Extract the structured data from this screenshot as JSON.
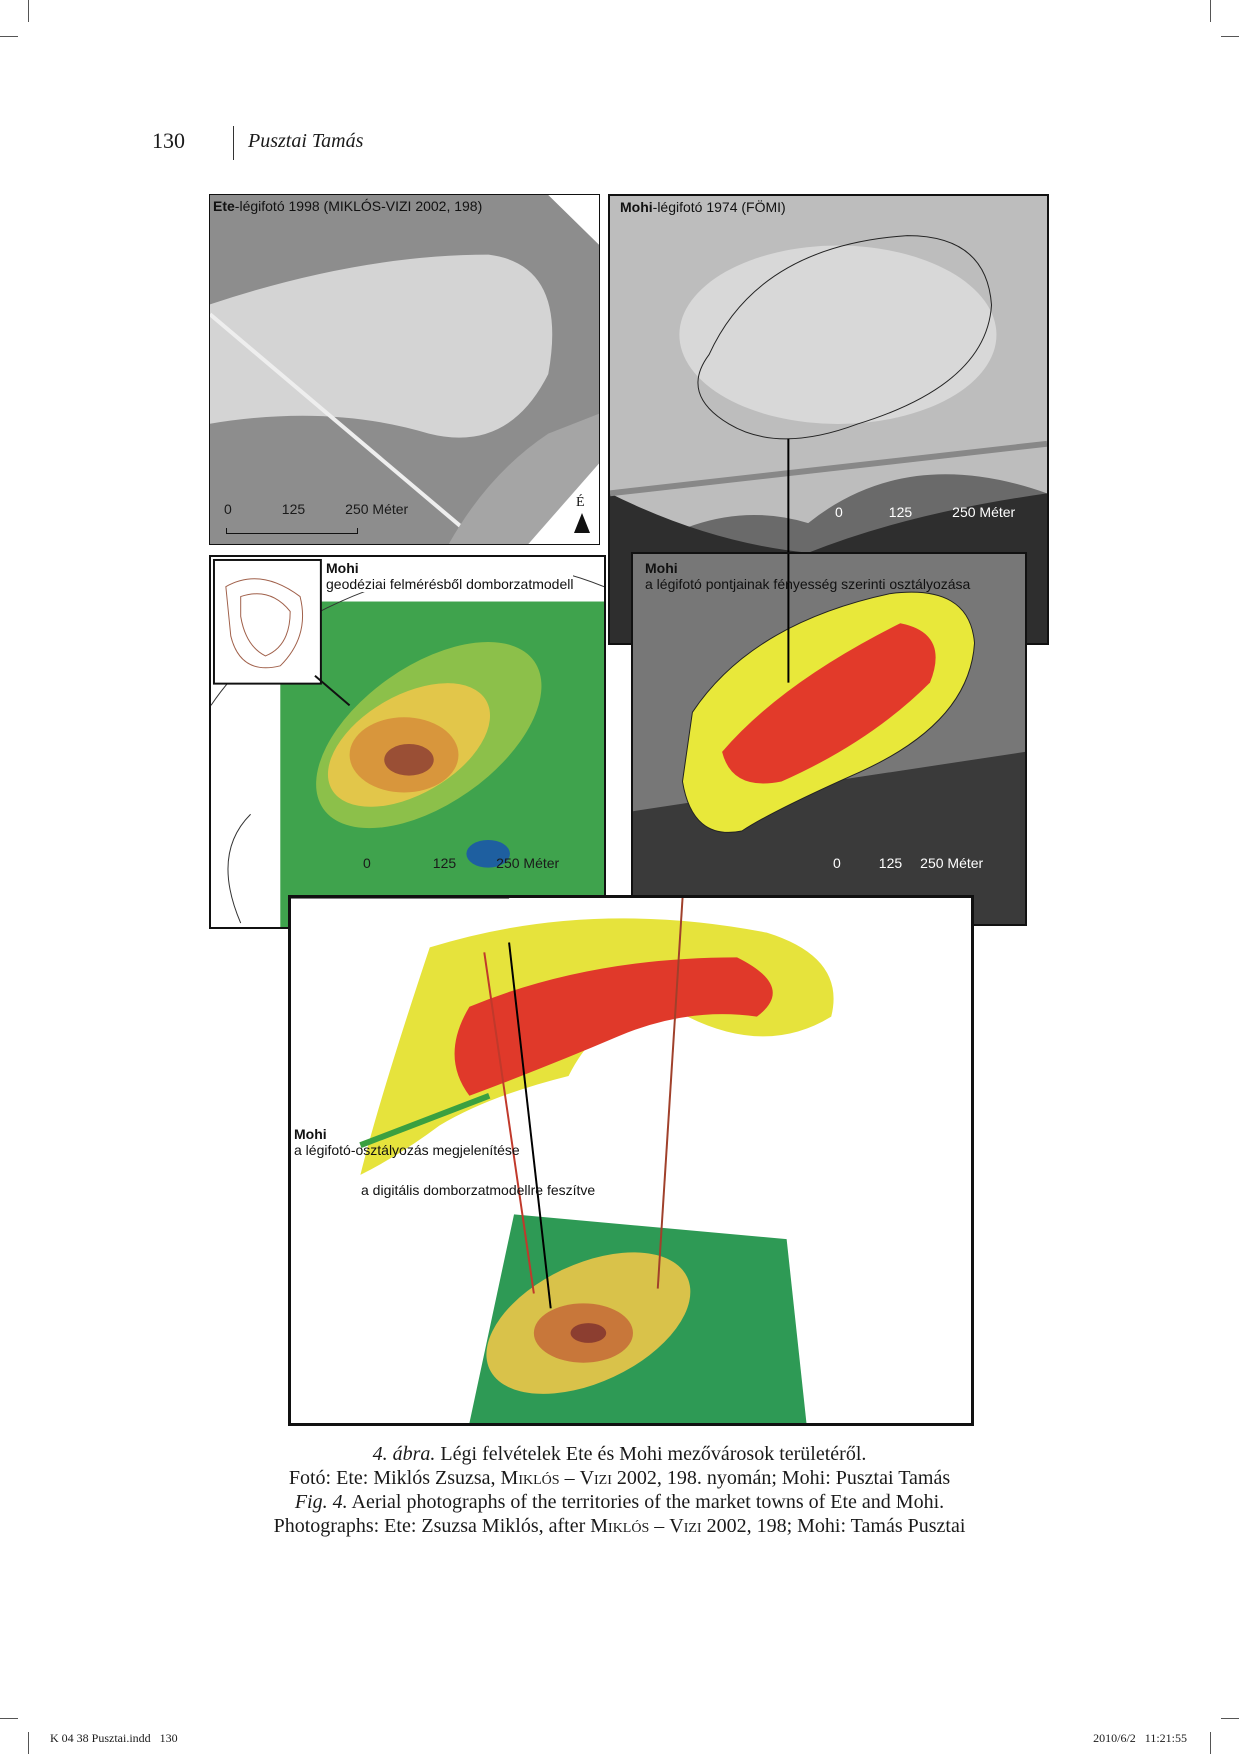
{
  "header": {
    "page_number": "130",
    "author": "Pusztai Tamás"
  },
  "figure": {
    "panel_ete": {
      "title_bold": "Ete",
      "title_rest": "-légifotó 1998 (MIKLÓS-VIZI 2002, 198)",
      "scale": [
        "0",
        "125",
        "250 Méter"
      ],
      "north": "É"
    },
    "panel_mohi_photo": {
      "title_bold": "Mohi",
      "title_rest": "-légifotó 1974 (FÖMI)",
      "scale": [
        "0",
        "125",
        "250 Méter"
      ]
    },
    "panel_dem": {
      "title": "Mohi",
      "subtitle": "geodéziai felmérésből domborzatmodell",
      "scale": [
        "0",
        "125",
        "250 Méter"
      ]
    },
    "panel_class": {
      "title": "Mohi",
      "subtitle": "a légifotó pontjainak fényesség szerinti osztályozása",
      "scale": [
        "0",
        "125",
        "250 Méter"
      ]
    },
    "panel_3d": {
      "title": "Mohi",
      "line1": "a légifotó-osztályozás megjelenítése",
      "line2": "a digitális domborzatmodellre feszítve"
    }
  },
  "caption": {
    "l1_label": "4. ábra.",
    "l1_text": " Légi felvételek Ete és Mohi mezővárosok területéről.",
    "l2_a": "Fotó: Ete: Miklós Zsuzsa, ",
    "l2_sc1": "Miklós",
    "l2_b": " – ",
    "l2_sc2": "Vizi",
    "l2_c": " 2002, 198. nyomán; Mohi: Pusztai Tamás",
    "l3_label": "Fig. 4.",
    "l3_text": " Aerial photographs of the territories of the market towns of Ete and Mohi.",
    "l4_a": "Photographs: Ete: Zsuzsa Miklós, after ",
    "l4_sc1": "Miklós",
    "l4_b": " – ",
    "l4_sc2": "Vizi",
    "l4_c": " 2002, 198; Mohi: Tamás Pusztai"
  },
  "footer": {
    "left": "K 04 38 Pusztai.indd   130",
    "right": "2010/6/2   11:21:55"
  }
}
